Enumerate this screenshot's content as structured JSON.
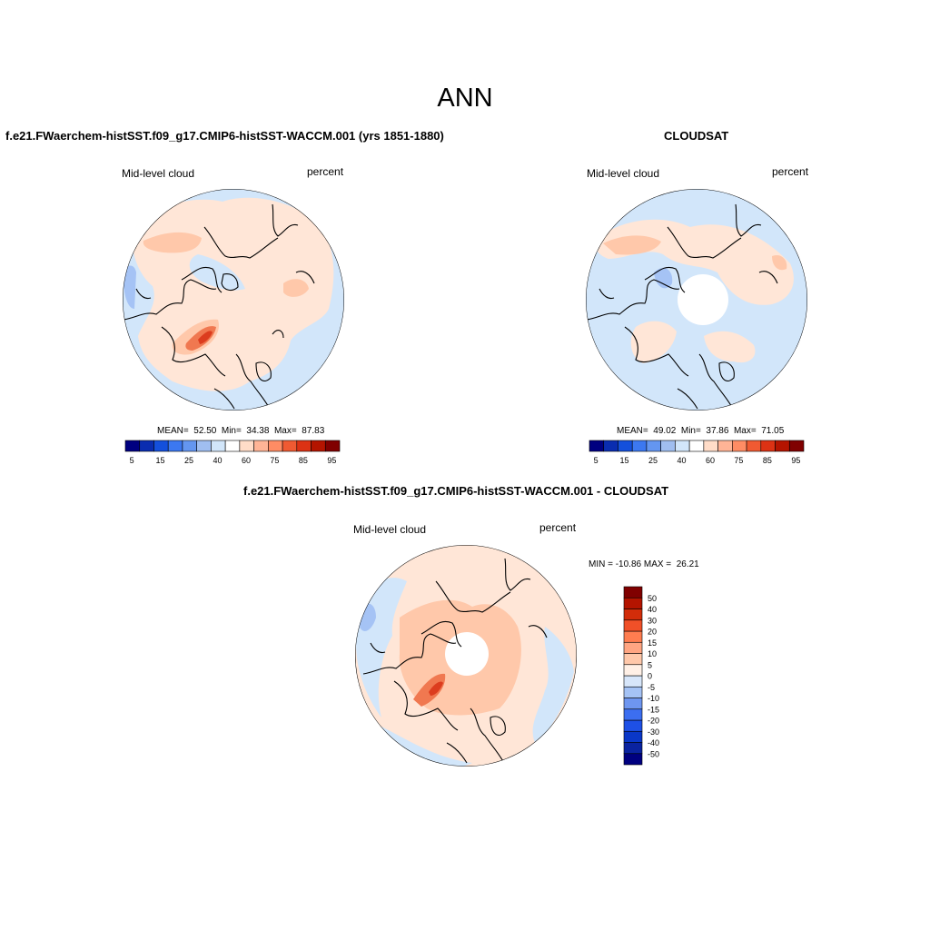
{
  "main_title": "ANN",
  "panels": [
    {
      "title": "f.e21.FWaerchem-histSST.f09_g17.CMIP6-histSST-WACCM.001 (yrs 1851-1880)",
      "left_label": "Mid-level cloud",
      "right_label": "percent",
      "stats": "MEAN=  52.50  Min=  34.38  Max=  87.83",
      "mean": 52.5,
      "min": 34.38,
      "max": 87.83
    },
    {
      "title": "CLOUDSAT",
      "left_label": "Mid-level cloud",
      "right_label": "percent",
      "stats": "MEAN=  49.02  Min=  37.86  Max=  71.05",
      "mean": 49.02,
      "min": 37.86,
      "max": 71.05
    },
    {
      "title": "f.e21.FWaerchem-histSST.f09_g17.CMIP6-histSST-WACCM.001 - CLOUDSAT",
      "left_label": "Mid-level cloud",
      "right_label": "percent",
      "stats": "MIN = -10.86 MAX =  26.21",
      "min": -10.86,
      "max": 26.21
    }
  ],
  "abs_colorbar": {
    "colors": [
      "#000080",
      "#0a2db0",
      "#1450dc",
      "#3c78f0",
      "#6496f0",
      "#a0bef0",
      "#d2e6fa",
      "#ffffff",
      "#ffdcc8",
      "#ffb496",
      "#ff8c64",
      "#f05a32",
      "#dc3214",
      "#b41400",
      "#800000"
    ],
    "tick_labels": [
      "5",
      "15",
      "25",
      "40",
      "60",
      "75",
      "85",
      "95"
    ]
  },
  "diff_colorbar": {
    "colors": [
      "#000080",
      "#0a23a0",
      "#0a37c8",
      "#1e50e6",
      "#3c6ef0",
      "#6e96f0",
      "#a5c3f5",
      "#d7e6fa",
      "#fff0e6",
      "#ffc8aa",
      "#ffa582",
      "#ff7d50",
      "#f05028",
      "#d22d0a",
      "#b41400",
      "#800000"
    ],
    "tick_labels": [
      "50",
      "40",
      "30",
      "20",
      "15",
      "10",
      "5",
      "0",
      "-5",
      "-10",
      "-15",
      "-20",
      "-30",
      "-40",
      "-50"
    ]
  },
  "legend_palette": {
    "neg_light": "#d2e6fa",
    "neg_mid": "#a5c3f5",
    "pos_light": "#ffe6d7",
    "pos_mid": "#ffc8aa",
    "pos_strong": "#f07850",
    "pos_max": "#dc3c1e"
  }
}
